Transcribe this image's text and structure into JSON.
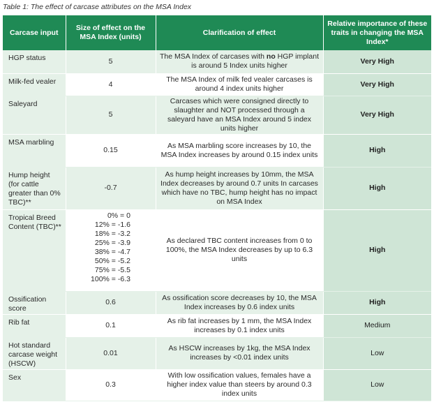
{
  "caption": "Table 1: The effect of carcase attributes on the MSA Index",
  "headers": {
    "input": "Carcase input",
    "size": "Size of effect on the MSA Index (units)",
    "clarification": "Clarification of effect",
    "importance": "Relative importance of these traits in changing the MSA Index*"
  },
  "rows": [
    {
      "input": "HGP status",
      "size": "5",
      "clar_a": "The MSA Index of carcases with ",
      "clar_bold": "no",
      "clar_b": " HGP implant is around 5 Index units higher",
      "importance": "Very High"
    },
    {
      "input": "Milk-fed vealer",
      "size": "4",
      "clarification": "The MSA Index of milk fed vealer carcases is around 4 index units higher",
      "importance": "Very High"
    },
    {
      "input": "Saleyard",
      "size": "5",
      "clarification": "Carcases which were consigned directly to slaughter and NOT processed through a saleyard have an MSA Index around 5 index units higher",
      "importance": "Very High"
    },
    {
      "input": "MSA marbling",
      "size": "0.15",
      "clarification": "As MSA marbling score increases by 10, the MSA Index increases by around 0.15 index units",
      "importance": "High"
    },
    {
      "input": "Hump height (for cattle greater than 0% TBC)**",
      "size": "-0.7",
      "clarification": "As hump height increases by 10mm, the MSA Index decreases by around 0.7 units In carcases which have no TBC, hump height has no impact on MSA Index",
      "importance": "High"
    },
    {
      "input": "Tropical Breed Content (TBC)**",
      "size_list": [
        "0% = 0",
        "12% = -1.6",
        "18% = -3.2",
        "25% = -3.9",
        "38% = -4.7",
        "50% = -5.2",
        "75% = -5.5",
        "100% = -6.3"
      ],
      "clarification": "As declared TBC content increases from 0 to 100%, the MSA Index decreases by up to 6.3 units",
      "importance": "High"
    },
    {
      "input": "Ossification score",
      "size": "0.6",
      "clarification": "As ossification score decreases by 10, the MSA Index increases by 0.6 index units",
      "importance": "High"
    },
    {
      "input": "Rib fat",
      "size": "0.1",
      "clarification": "As rib fat increases by 1 mm, the MSA Index increases by 0.1 index units",
      "importance": "Medium"
    },
    {
      "input": "Hot standard carcase weight (HSCW)",
      "size": "0.01",
      "clarification": "As HSCW increases by 1kg, the MSA Index increases by <0.01 index units",
      "importance": "Low"
    },
    {
      "input": "Sex",
      "size": "0.3",
      "clarification": "With low ossification values, females have a higher index value than steers by around 0.3 index units",
      "importance": "Low"
    }
  ]
}
